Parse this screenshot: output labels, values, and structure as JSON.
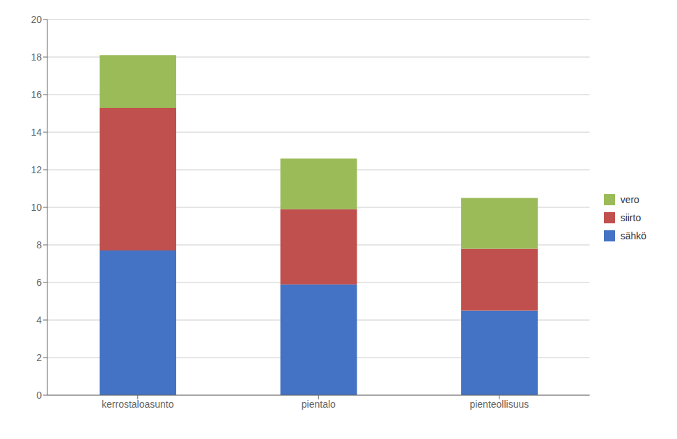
{
  "chart_data": {
    "type": "bar",
    "stacked": true,
    "categories": [
      "kerrostaloasunto",
      "pientalo",
      "pienteollisuus"
    ],
    "series": [
      {
        "name": "sähkö",
        "color": "#4472C4",
        "values": [
          7.7,
          5.9,
          4.5
        ]
      },
      {
        "name": "siirto",
        "color": "#C0504D",
        "values": [
          7.6,
          4.0,
          3.3
        ]
      },
      {
        "name": "vero",
        "color": "#9BBB59",
        "values": [
          2.8,
          2.7,
          2.7
        ]
      }
    ],
    "ylim": [
      0,
      20
    ],
    "yticks": [
      0,
      2,
      4,
      6,
      8,
      10,
      12,
      14,
      16,
      18,
      20
    ],
    "grid": true,
    "legend": "right"
  }
}
